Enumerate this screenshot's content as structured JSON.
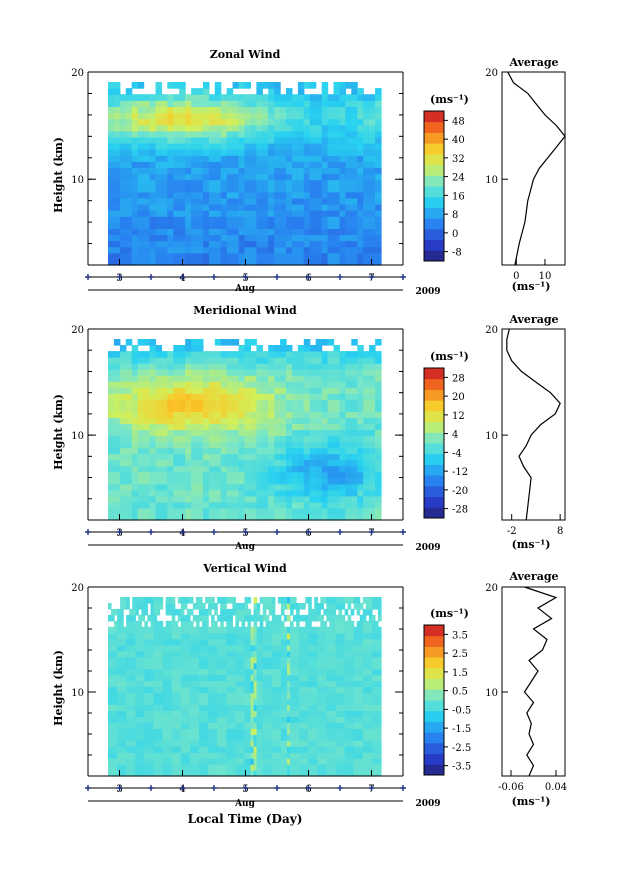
{
  "figure": {
    "xlabel": "Local Time (Day)",
    "month_label": "Aug",
    "year_label": "2009"
  },
  "chart_data": [
    {
      "type": "heatmap",
      "title": "Zonal Wind",
      "ylabel": "Height (km)",
      "ylim": [
        2,
        20
      ],
      "xlim": [
        2.5,
        7.5
      ],
      "x_ticks": [
        "3",
        "4",
        "5",
        "6",
        "7"
      ],
      "y_ticks": [
        "10",
        "20"
      ],
      "colorbar": {
        "unit": "(ms⁻¹)",
        "ticks": [
          "-8",
          "0",
          "8",
          "16",
          "24",
          "32",
          "40",
          "48"
        ],
        "range": [
          -12,
          52
        ]
      },
      "profile": {
        "title": "Average",
        "ylabel_ticks": [
          "10",
          "20"
        ],
        "x_ticks": [
          "0",
          "10"
        ],
        "xlim": [
          -5,
          17
        ],
        "unit": "(ms⁻¹)",
        "heights": [
          2,
          4,
          6,
          8,
          10,
          11,
          12,
          13,
          14,
          15,
          16,
          17,
          18,
          19,
          20
        ],
        "values": [
          -0.5,
          1,
          3,
          4,
          6,
          8,
          11,
          14,
          17,
          14,
          10,
          7,
          4,
          -1,
          -3
        ]
      }
    },
    {
      "type": "heatmap",
      "title": "Meridional Wind",
      "ylabel": "Height (km)",
      "ylim": [
        2,
        20
      ],
      "xlim": [
        2.5,
        7.5
      ],
      "x_ticks": [
        "3",
        "4",
        "5",
        "6",
        "7"
      ],
      "y_ticks": [
        "10",
        "20"
      ],
      "colorbar": {
        "unit": "(ms⁻¹)",
        "ticks": [
          "-28",
          "-20",
          "-12",
          "-4",
          "4",
          "12",
          "20",
          "28"
        ],
        "range": [
          -32,
          32
        ]
      },
      "profile": {
        "title": "Average",
        "ylabel_ticks": [
          "10",
          "20"
        ],
        "x_ticks": [
          "-2",
          "8"
        ],
        "xlim": [
          -4,
          9
        ],
        "unit": "(ms⁻¹)",
        "heights": [
          2,
          4,
          6,
          7,
          8,
          9,
          10,
          11,
          12,
          13,
          14,
          15,
          16,
          17,
          18,
          19,
          20
        ],
        "values": [
          1,
          1.5,
          2,
          0.5,
          -0.5,
          1,
          2,
          4,
          7,
          8,
          6,
          3,
          0,
          -2,
          -3,
          -3,
          -2.5
        ]
      }
    },
    {
      "type": "heatmap",
      "title": "Vertical Wind",
      "ylabel": "Height (km)",
      "ylim": [
        2,
        20
      ],
      "xlim": [
        2.5,
        7.5
      ],
      "x_ticks": [
        "3",
        "4",
        "5",
        "6",
        "7"
      ],
      "y_ticks": [
        "10",
        "20"
      ],
      "colorbar": {
        "unit": "(ms⁻¹)",
        "ticks": [
          "-3.5",
          "-2.5",
          "-1.5",
          "-0.5",
          "0.5",
          "1.5",
          "2.5",
          "3.5"
        ],
        "range": [
          -4,
          4
        ]
      },
      "profile": {
        "title": "Average",
        "ylabel_ticks": [
          "10",
          "20"
        ],
        "x_ticks": [
          "-0.06",
          "0.04"
        ],
        "xlim": [
          -0.08,
          0.06
        ],
        "unit": "(ms⁻¹)",
        "heights": [
          2,
          3,
          4,
          5,
          6,
          7,
          8,
          9,
          10,
          11,
          12,
          13,
          14,
          15,
          16,
          17,
          18,
          19,
          20
        ],
        "values": [
          -0.02,
          -0.01,
          -0.025,
          -0.01,
          -0.02,
          -0.015,
          -0.025,
          -0.01,
          -0.03,
          -0.015,
          0.0,
          -0.02,
          0.01,
          0.02,
          -0.01,
          0.03,
          0.0,
          0.04,
          -0.03
        ]
      }
    }
  ]
}
